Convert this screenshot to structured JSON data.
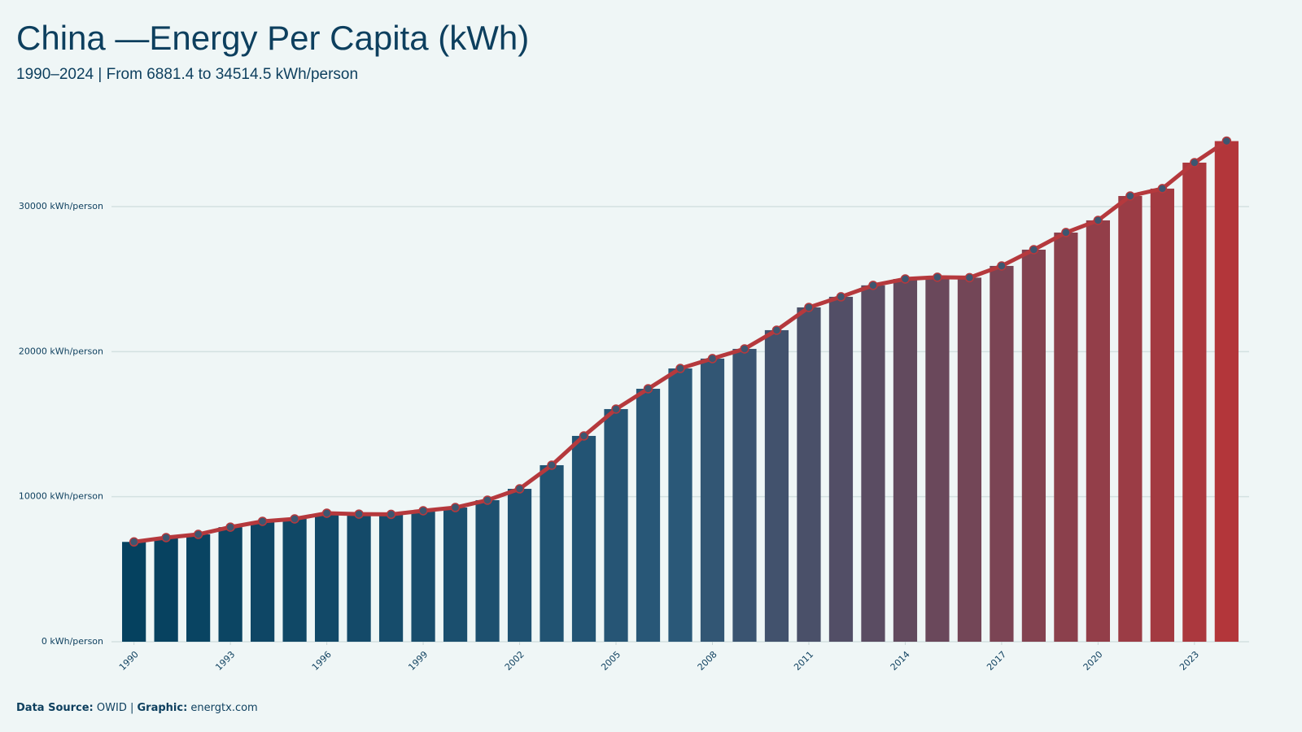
{
  "chart_data": {
    "type": "bar",
    "title": "China —Energy Per Capita (kWh)",
    "subtitle": "1990–2024 | From 6881.4 to 34514.5 kWh/person",
    "source_label": "Data Source:",
    "source": "OWID |",
    "graphic_label": "Graphic:",
    "graphic": "energtx.com",
    "x": [
      1990,
      1991,
      1992,
      1993,
      1994,
      1995,
      1996,
      1997,
      1998,
      1999,
      2000,
      2001,
      2002,
      2003,
      2004,
      2005,
      2006,
      2007,
      2008,
      2009,
      2010,
      2011,
      2012,
      2013,
      2014,
      2015,
      2016,
      2017,
      2018,
      2019,
      2020,
      2021,
      2022,
      2023,
      2024
    ],
    "values": [
      6881.4,
      7180,
      7400,
      7900,
      8300,
      8470,
      8860,
      8800,
      8780,
      9030,
      9250,
      9760,
      10540,
      12170,
      14190,
      16040,
      17440,
      18840,
      19520,
      20190,
      21480,
      23050,
      23780,
      24570,
      25010,
      25130,
      25100,
      25910,
      27030,
      28210,
      29050,
      30730,
      31240,
      33030,
      34514.5
    ],
    "xlim": [
      1989.3,
      2024.7
    ],
    "xticks": [
      1990,
      1993,
      1996,
      1999,
      2002,
      2005,
      2008,
      2011,
      2014,
      2017,
      2020,
      2023
    ],
    "ylim": [
      0,
      36000
    ],
    "yticks": [
      {
        "value": 0,
        "label": "0 kWh/person"
      },
      {
        "value": 10000,
        "label": "10000 kWh/person"
      },
      {
        "value": 20000,
        "label": "20000 kWh/person"
      },
      {
        "value": 30000,
        "label": "30000 kWh/person"
      }
    ],
    "grid": true,
    "bar_colors": [
      "#05415f",
      "#2a5878",
      "#b3363a"
    ],
    "line": true,
    "line_color": "#b5393d",
    "marker_color": "#3d5670"
  }
}
